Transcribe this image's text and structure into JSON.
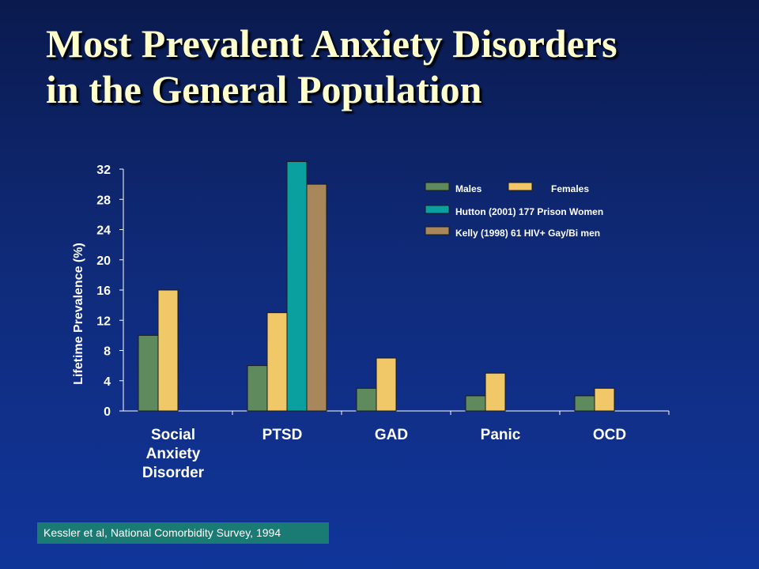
{
  "slide": {
    "title_line1": "Most Prevalent Anxiety Disorders",
    "title_line2": "in the General Population",
    "citation": "Kessler et al, National Comorbidity Survey, 1994"
  },
  "chart_data": {
    "type": "bar",
    "title": "",
    "ylabel": "Lifetime Prevalence (%)",
    "xlabel": "",
    "ylim": [
      0,
      32
    ],
    "yticks": [
      0,
      4,
      8,
      12,
      16,
      20,
      24,
      28,
      32
    ],
    "categories": [
      [
        "Social",
        "Anxiety",
        "Disorder"
      ],
      [
        "PTSD"
      ],
      [
        "GAD"
      ],
      [
        "Panic"
      ],
      [
        "OCD"
      ]
    ],
    "series": [
      {
        "name": "Males",
        "color": "#5e8a5e",
        "values": [
          10,
          6,
          3,
          2,
          2
        ]
      },
      {
        "name": "Females",
        "color": "#f0c868",
        "values": [
          16,
          13,
          7,
          5,
          3
        ]
      },
      {
        "name": "Hutton (2001) 177 Prison Women",
        "color": "#0aa0a0",
        "values": [
          null,
          33,
          null,
          null,
          null
        ]
      },
      {
        "name": "Kelly (1998) 61 HIV+ Gay/Bi men",
        "color": "#a8885a",
        "values": [
          null,
          30,
          null,
          null,
          null
        ]
      }
    ],
    "legend_position": "top-right",
    "grid": false
  }
}
